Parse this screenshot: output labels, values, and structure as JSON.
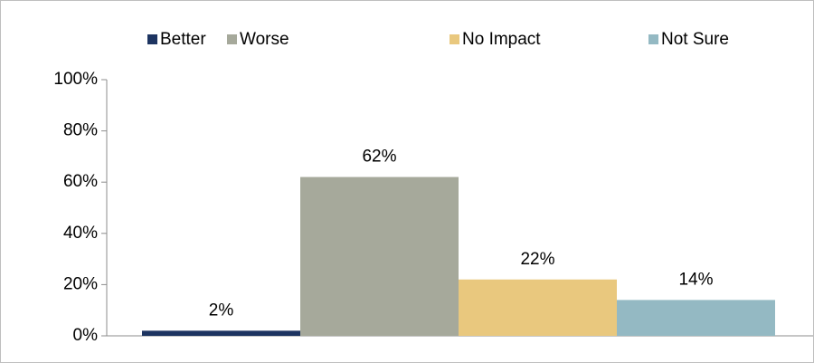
{
  "chart_data": {
    "type": "bar",
    "categories": [
      null
    ],
    "series": [
      {
        "name": "Better",
        "color": "#1d3461",
        "values": [
          2
        ],
        "value_labels": [
          "2%"
        ]
      },
      {
        "name": "Worse",
        "color": "#a6a99b",
        "values": [
          62
        ],
        "value_labels": [
          "62%"
        ]
      },
      {
        "name": "No Impact",
        "color": "#e9c87e",
        "values": [
          22
        ],
        "value_labels": [
          "22%"
        ]
      },
      {
        "name": "Not Sure",
        "color": "#94b9c3",
        "values": [
          14
        ],
        "value_labels": [
          "14%"
        ]
      }
    ],
    "ylim": [
      0,
      100
    ],
    "yticks": [
      {
        "value": 0,
        "label": "0%"
      },
      {
        "value": 20,
        "label": "20%"
      },
      {
        "value": 40,
        "label": "40%"
      },
      {
        "value": 60,
        "label": "60%"
      },
      {
        "value": 80,
        "label": "80%"
      },
      {
        "value": 100,
        "label": "100%"
      }
    ],
    "grid": false,
    "legend": "top"
  }
}
